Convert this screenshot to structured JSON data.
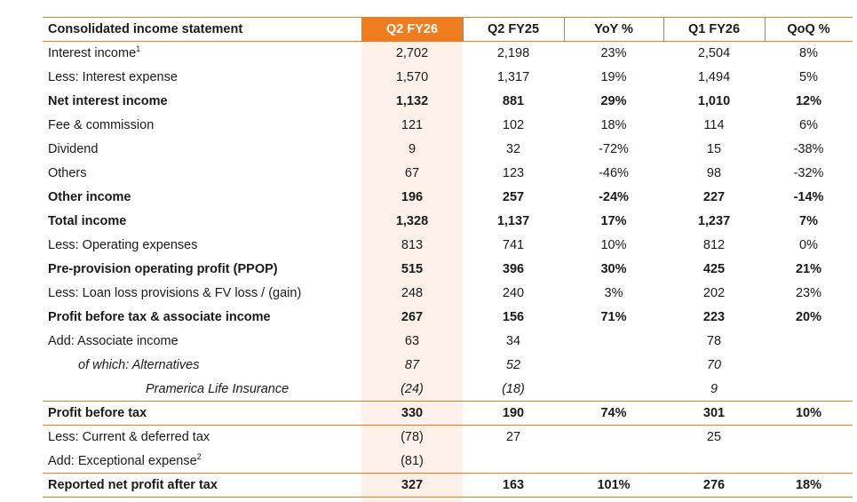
{
  "table": {
    "columns": [
      "Consolidated income statement",
      "Q2 FY26",
      "Q2 FY25",
      "YoY %",
      "Q1 FY26",
      "QoQ %"
    ],
    "rows": [
      {
        "label": "Interest income",
        "sup": "1",
        "q2fy26": "2,702",
        "q2fy25": "2,198",
        "yoy": "23%",
        "q1fy26": "2,504",
        "qoq": "8%"
      },
      {
        "label": "Less: Interest expense",
        "sup": "",
        "q2fy26": "1,570",
        "q2fy25": "1,317",
        "yoy": "19%",
        "q1fy26": "1,494",
        "qoq": "5%"
      },
      {
        "label": "Net interest income",
        "sup": "",
        "q2fy26": "1,132",
        "q2fy25": "881",
        "yoy": "29%",
        "q1fy26": "1,010",
        "qoq": "12%"
      },
      {
        "label": "Fee & commission",
        "sup": "",
        "q2fy26": "121",
        "q2fy25": "102",
        "yoy": "18%",
        "q1fy26": "114",
        "qoq": "6%"
      },
      {
        "label": "Dividend",
        "sup": "",
        "q2fy26": "9",
        "q2fy25": "32",
        "yoy": "-72%",
        "q1fy26": "15",
        "qoq": "-38%"
      },
      {
        "label": "Others",
        "sup": "",
        "q2fy26": "67",
        "q2fy25": "123",
        "yoy": "-46%",
        "q1fy26": "98",
        "qoq": "-32%"
      },
      {
        "label": "Other income",
        "sup": "",
        "q2fy26": "196",
        "q2fy25": "257",
        "yoy": "-24%",
        "q1fy26": "227",
        "qoq": "-14%"
      },
      {
        "label": "Total income",
        "sup": "",
        "q2fy26": "1,328",
        "q2fy25": "1,137",
        "yoy": "17%",
        "q1fy26": "1,237",
        "qoq": "7%"
      },
      {
        "label": "Less: Operating expenses",
        "sup": "",
        "q2fy26": "813",
        "q2fy25": "741",
        "yoy": "10%",
        "q1fy26": "812",
        "qoq": "0%"
      },
      {
        "label": "Pre-provision operating profit (PPOP)",
        "sup": "",
        "q2fy26": "515",
        "q2fy25": "396",
        "yoy": "30%",
        "q1fy26": "425",
        "qoq": "21%"
      },
      {
        "label": "Less: Loan loss provisions & FV loss / (gain)",
        "sup": "",
        "q2fy26": "248",
        "q2fy25": "240",
        "yoy": "3%",
        "q1fy26": "202",
        "qoq": "23%"
      },
      {
        "label": "Profit before tax & associate income",
        "sup": "",
        "q2fy26": "267",
        "q2fy25": "156",
        "yoy": "71%",
        "q1fy26": "223",
        "qoq": "20%"
      },
      {
        "label": "Add: Associate income",
        "sup": "",
        "q2fy26": "63",
        "q2fy25": "34",
        "yoy": "",
        "q1fy26": "78",
        "qoq": ""
      },
      {
        "label": "of which:  Alternatives",
        "sup": "",
        "q2fy26": "87",
        "q2fy25": "52",
        "yoy": "",
        "q1fy26": "70",
        "qoq": ""
      },
      {
        "label": "Pramerica Life Insurance",
        "sup": "",
        "q2fy26": "(24)",
        "q2fy25": "(18)",
        "yoy": "",
        "q1fy26": "9",
        "qoq": ""
      },
      {
        "label": "Profit before tax",
        "sup": "",
        "q2fy26": "330",
        "q2fy25": "190",
        "yoy": "74%",
        "q1fy26": "301",
        "qoq": "10%"
      },
      {
        "label": "Less: Current & deferred tax",
        "sup": "",
        "q2fy26": "(78)",
        "q2fy25": "27",
        "yoy": "",
        "q1fy26": "25",
        "qoq": ""
      },
      {
        "label": "Add: Exceptional expense",
        "sup": "2",
        "q2fy26": "(81)",
        "q2fy25": "",
        "yoy": "",
        "q1fy26": "",
        "qoq": ""
      },
      {
        "label": "Reported net profit after tax",
        "sup": "",
        "q2fy26": "327",
        "q2fy25": "163",
        "yoy": "101%",
        "q1fy26": "276",
        "qoq": "18%"
      }
    ]
  },
  "colors": {
    "accent": "#f07c20",
    "highlight_bg": "#fdf1ea",
    "text": "#1a1a1a"
  }
}
